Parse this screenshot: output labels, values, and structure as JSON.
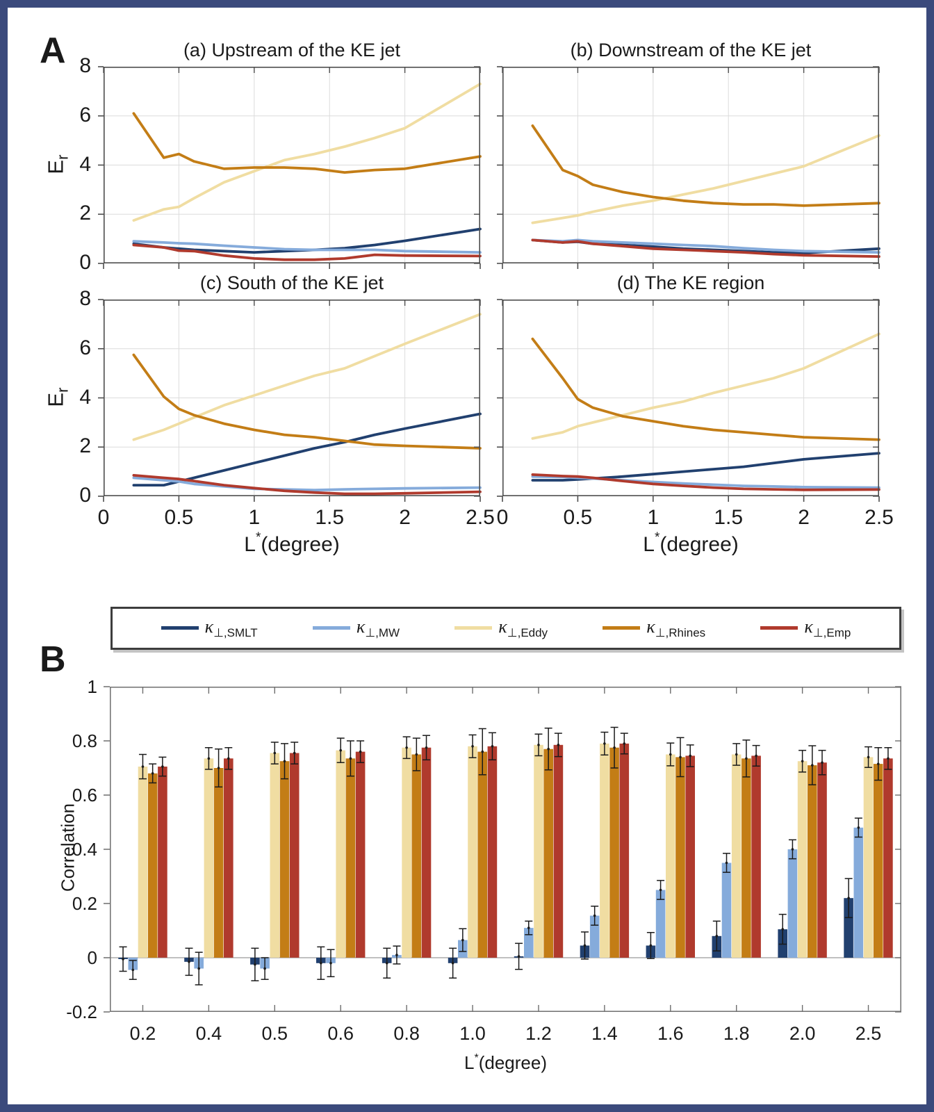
{
  "figure": {
    "panel_a": "A",
    "panel_b": "B"
  },
  "colors": {
    "frame": "#3b4a7c",
    "smlt": "#21406f",
    "mw": "#85abdb",
    "eddy": "#f0dda2",
    "rhines": "#c37d16",
    "emp": "#b03a2d",
    "grid": "#dcdcdc",
    "box_a": "#4d4d4d",
    "box_b": "#6e6e6e",
    "zero_line": "#ababab",
    "error_bar": "#1a1a1a"
  },
  "legend_entries": [
    {
      "key": "smlt",
      "symbol": "κ",
      "subscript": "⊥,SMLT"
    },
    {
      "key": "mw",
      "symbol": "κ",
      "subscript": "⊥,MW"
    },
    {
      "key": "eddy",
      "symbol": "κ",
      "subscript": "⊥,Eddy"
    },
    {
      "key": "rhines",
      "symbol": "κ",
      "subscript": "⊥,Rhines"
    },
    {
      "key": "emp",
      "symbol": "κ",
      "subscript": "⊥,Emp"
    }
  ],
  "er_label": {
    "base": "E",
    "sub": "r"
  },
  "x_axis_label": {
    "base": "L",
    "sup": "*",
    "rest": "(degree)"
  },
  "correlation_label": "Correlation",
  "chart_data": [
    {
      "type": "line",
      "id": "a",
      "title": "(a) Upstream of the KE jet",
      "xlabel": "L*(degree)",
      "ylabel": "Er",
      "xlim": [
        0,
        2.5
      ],
      "ylim": [
        0,
        8
      ],
      "grid": true,
      "legend_position": "shared-bottom-box",
      "xticks": [
        {
          "v": 0,
          "label": "0"
        },
        {
          "v": 0.5,
          "label": "0.5"
        },
        {
          "v": 1,
          "label": "1"
        },
        {
          "v": 1.5,
          "label": "1.5"
        },
        {
          "v": 2,
          "label": "2"
        },
        {
          "v": 2.5,
          "label": "2.5"
        }
      ],
      "yticks": [
        {
          "v": 0,
          "label": "0"
        },
        {
          "v": 2,
          "label": "2"
        },
        {
          "v": 4,
          "label": "4"
        },
        {
          "v": 6,
          "label": "6"
        },
        {
          "v": 8,
          "label": "8"
        }
      ],
      "x": [
        0.2,
        0.4,
        0.5,
        0.6,
        0.8,
        1.0,
        1.2,
        1.4,
        1.6,
        1.8,
        2.0,
        2.5
      ],
      "series": [
        {
          "key": "smlt",
          "name": "κ⊥,SMLT",
          "values": [
            0.8,
            0.65,
            0.6,
            0.55,
            0.5,
            0.45,
            0.5,
            0.55,
            0.62,
            0.75,
            0.92,
            1.4
          ]
        },
        {
          "key": "mw",
          "name": "κ⊥,MW",
          "values": [
            0.9,
            0.85,
            0.82,
            0.8,
            0.72,
            0.65,
            0.58,
            0.55,
            0.55,
            0.55,
            0.5,
            0.45
          ]
        },
        {
          "key": "eddy",
          "name": "κ⊥,Eddy",
          "values": [
            1.75,
            2.2,
            2.3,
            2.65,
            3.3,
            3.75,
            4.2,
            4.45,
            4.75,
            5.1,
            5.5,
            7.3
          ]
        },
        {
          "key": "rhines",
          "name": "κ⊥,Rhines",
          "values": [
            6.1,
            4.3,
            4.45,
            4.15,
            3.85,
            3.9,
            3.9,
            3.85,
            3.7,
            3.8,
            3.85,
            4.35
          ]
        },
        {
          "key": "emp",
          "name": "κ⊥,Emp",
          "values": [
            0.75,
            0.65,
            0.52,
            0.5,
            0.32,
            0.2,
            0.15,
            0.15,
            0.2,
            0.35,
            0.32,
            0.3
          ]
        }
      ]
    },
    {
      "type": "line",
      "id": "b",
      "title": "(b) Downstream of the KE jet",
      "xlabel": "L*(degree)",
      "ylabel": "Er",
      "xlim": [
        0,
        2.5
      ],
      "ylim": [
        0,
        8
      ],
      "grid": true,
      "xticks": [
        {
          "v": 0,
          "label": "0"
        },
        {
          "v": 0.5,
          "label": "0.5"
        },
        {
          "v": 1,
          "label": "1"
        },
        {
          "v": 1.5,
          "label": "1.5"
        },
        {
          "v": 2,
          "label": "2"
        },
        {
          "v": 2.5,
          "label": "2.5"
        }
      ],
      "yticks": [
        {
          "v": 0,
          "label": "0"
        },
        {
          "v": 2,
          "label": "2"
        },
        {
          "v": 4,
          "label": "4"
        },
        {
          "v": 6,
          "label": "6"
        },
        {
          "v": 8,
          "label": "8"
        }
      ],
      "x": [
        0.2,
        0.4,
        0.5,
        0.6,
        0.8,
        1.0,
        1.2,
        1.4,
        1.6,
        1.8,
        2.0,
        2.5
      ],
      "series": [
        {
          "key": "smlt",
          "name": "κ⊥,SMLT",
          "values": [
            0.95,
            0.85,
            0.88,
            0.8,
            0.75,
            0.68,
            0.6,
            0.55,
            0.5,
            0.45,
            0.42,
            0.6
          ]
        },
        {
          "key": "mw",
          "name": "κ⊥,MW",
          "values": [
            0.95,
            0.9,
            0.95,
            0.9,
            0.85,
            0.8,
            0.75,
            0.7,
            0.62,
            0.55,
            0.5,
            0.45
          ]
        },
        {
          "key": "eddy",
          "name": "κ⊥,Eddy",
          "values": [
            1.65,
            1.85,
            1.95,
            2.1,
            2.35,
            2.55,
            2.8,
            3.05,
            3.35,
            3.65,
            3.95,
            5.2
          ]
        },
        {
          "key": "rhines",
          "name": "κ⊥,Rhines",
          "values": [
            5.6,
            3.8,
            3.55,
            3.2,
            2.9,
            2.7,
            2.55,
            2.45,
            2.4,
            2.4,
            2.35,
            2.45
          ]
        },
        {
          "key": "emp",
          "name": "κ⊥,Emp",
          "values": [
            0.95,
            0.85,
            0.9,
            0.8,
            0.7,
            0.6,
            0.55,
            0.5,
            0.45,
            0.38,
            0.33,
            0.28
          ]
        }
      ]
    },
    {
      "type": "line",
      "id": "c",
      "title": "(c) South of the KE jet",
      "xlabel": "L*(degree)",
      "ylabel": "Er",
      "xlim": [
        0,
        2.5
      ],
      "ylim": [
        0,
        8
      ],
      "grid": true,
      "xticks": [
        {
          "v": 0,
          "label": "0"
        },
        {
          "v": 0.5,
          "label": "0.5"
        },
        {
          "v": 1,
          "label": "1"
        },
        {
          "v": 1.5,
          "label": "1.5"
        },
        {
          "v": 2,
          "label": "2"
        },
        {
          "v": 2.5,
          "label": "2.5"
        }
      ],
      "yticks": [
        {
          "v": 0,
          "label": "0"
        },
        {
          "v": 2,
          "label": "2"
        },
        {
          "v": 4,
          "label": "4"
        },
        {
          "v": 6,
          "label": "6"
        },
        {
          "v": 8,
          "label": "8"
        }
      ],
      "x": [
        0.2,
        0.4,
        0.5,
        0.6,
        0.8,
        1.0,
        1.2,
        1.4,
        1.6,
        1.8,
        2.0,
        2.5
      ],
      "series": [
        {
          "key": "smlt",
          "name": "κ⊥,SMLT",
          "values": [
            0.45,
            0.45,
            0.6,
            0.75,
            1.05,
            1.35,
            1.65,
            1.95,
            2.2,
            2.5,
            2.75,
            3.35
          ]
        },
        {
          "key": "mw",
          "name": "κ⊥,MW",
          "values": [
            0.75,
            0.65,
            0.6,
            0.5,
            0.4,
            0.3,
            0.28,
            0.25,
            0.28,
            0.3,
            0.32,
            0.35
          ]
        },
        {
          "key": "eddy",
          "name": "κ⊥,Eddy",
          "values": [
            2.3,
            2.7,
            2.95,
            3.2,
            3.7,
            4.1,
            4.5,
            4.9,
            5.2,
            5.7,
            6.2,
            7.4
          ]
        },
        {
          "key": "rhines",
          "name": "κ⊥,Rhines",
          "values": [
            5.75,
            4.05,
            3.55,
            3.3,
            2.95,
            2.7,
            2.5,
            2.4,
            2.25,
            2.1,
            2.05,
            1.95
          ]
        },
        {
          "key": "emp",
          "name": "κ⊥,Emp",
          "values": [
            0.85,
            0.75,
            0.7,
            0.62,
            0.45,
            0.33,
            0.22,
            0.15,
            0.1,
            0.1,
            0.12,
            0.18
          ]
        }
      ]
    },
    {
      "type": "line",
      "id": "d",
      "title": "(d) The KE region",
      "xlabel": "L*(degree)",
      "ylabel": "Er",
      "xlim": [
        0,
        2.5
      ],
      "ylim": [
        0,
        8
      ],
      "grid": true,
      "xticks": [
        {
          "v": 0,
          "label": "0"
        },
        {
          "v": 0.5,
          "label": "0.5"
        },
        {
          "v": 1,
          "label": "1"
        },
        {
          "v": 1.5,
          "label": "1.5"
        },
        {
          "v": 2,
          "label": "2"
        },
        {
          "v": 2.5,
          "label": "2.5"
        }
      ],
      "yticks": [
        {
          "v": 0,
          "label": "0"
        },
        {
          "v": 2,
          "label": "2"
        },
        {
          "v": 4,
          "label": "4"
        },
        {
          "v": 6,
          "label": "6"
        },
        {
          "v": 8,
          "label": "8"
        }
      ],
      "x": [
        0.2,
        0.4,
        0.5,
        0.6,
        0.8,
        1.0,
        1.2,
        1.4,
        1.6,
        1.8,
        2.0,
        2.5
      ],
      "series": [
        {
          "key": "smlt",
          "name": "κ⊥,SMLT",
          "values": [
            0.65,
            0.65,
            0.68,
            0.72,
            0.8,
            0.9,
            1.0,
            1.1,
            1.2,
            1.35,
            1.5,
            1.75
          ]
        },
        {
          "key": "mw",
          "name": "κ⊥,MW",
          "values": [
            0.8,
            0.78,
            0.75,
            0.72,
            0.65,
            0.58,
            0.52,
            0.47,
            0.42,
            0.4,
            0.37,
            0.35
          ]
        },
        {
          "key": "eddy",
          "name": "κ⊥,Eddy",
          "values": [
            2.35,
            2.6,
            2.85,
            3.0,
            3.3,
            3.6,
            3.85,
            4.2,
            4.5,
            4.8,
            5.2,
            6.6
          ]
        },
        {
          "key": "rhines",
          "name": "κ⊥,Rhines",
          "values": [
            6.4,
            4.8,
            3.95,
            3.6,
            3.25,
            3.05,
            2.85,
            2.7,
            2.6,
            2.5,
            2.4,
            2.3
          ]
        },
        {
          "key": "emp",
          "name": "κ⊥,Emp",
          "values": [
            0.88,
            0.82,
            0.8,
            0.75,
            0.62,
            0.5,
            0.42,
            0.35,
            0.3,
            0.28,
            0.26,
            0.27
          ]
        }
      ]
    },
    {
      "type": "bar",
      "id": "correlation",
      "title": "",
      "xlabel": "L*(degree)",
      "ylabel": "Correlation",
      "ylim": [
        -0.2,
        1
      ],
      "grid": false,
      "legend_position": "inside-top",
      "yticks": [
        {
          "v": -0.2,
          "label": "-0.2"
        },
        {
          "v": 0,
          "label": "0"
        },
        {
          "v": 0.2,
          "label": "0.2"
        },
        {
          "v": 0.4,
          "label": "0.4"
        },
        {
          "v": 0.6,
          "label": "0.6"
        },
        {
          "v": 0.8,
          "label": "0.8"
        },
        {
          "v": 1,
          "label": "1"
        }
      ],
      "categories": [
        "0.2",
        "0.4",
        "0.5",
        "0.6",
        "0.8",
        "1.0",
        "1.2",
        "1.4",
        "1.6",
        "1.8",
        "2.0",
        "2.5"
      ],
      "series": [
        {
          "key": "smlt",
          "name": "κ⊥,SMLT",
          "values": [
            -0.005,
            -0.015,
            -0.025,
            -0.02,
            -0.02,
            -0.02,
            0.005,
            0.045,
            0.045,
            0.08,
            0.105,
            0.22
          ],
          "errors": [
            0.045,
            0.05,
            0.06,
            0.06,
            0.055,
            0.055,
            0.048,
            0.05,
            0.048,
            0.055,
            0.055,
            0.072
          ]
        },
        {
          "key": "mw",
          "name": "κ⊥,MW",
          "values": [
            -0.045,
            -0.04,
            -0.04,
            -0.02,
            0.01,
            0.065,
            0.11,
            0.155,
            0.25,
            0.35,
            0.4,
            0.48
          ],
          "errors": [
            0.035,
            0.06,
            0.04,
            0.05,
            0.033,
            0.042,
            0.025,
            0.035,
            0.035,
            0.035,
            0.035,
            0.035
          ]
        },
        {
          "key": "eddy",
          "name": "κ⊥,Eddy",
          "values": [
            0.705,
            0.735,
            0.755,
            0.765,
            0.775,
            0.78,
            0.785,
            0.79,
            0.75,
            0.75,
            0.725,
            0.74
          ],
          "errors": [
            0.045,
            0.04,
            0.04,
            0.045,
            0.04,
            0.042,
            0.04,
            0.042,
            0.042,
            0.04,
            0.04,
            0.038
          ]
        },
        {
          "key": "rhines",
          "name": "κ⊥,Rhines",
          "values": [
            0.68,
            0.7,
            0.725,
            0.735,
            0.75,
            0.76,
            0.77,
            0.775,
            0.74,
            0.735,
            0.71,
            0.715
          ],
          "errors": [
            0.035,
            0.07,
            0.065,
            0.065,
            0.06,
            0.085,
            0.077,
            0.075,
            0.072,
            0.068,
            0.072,
            0.06
          ]
        },
        {
          "key": "emp",
          "name": "κ⊥,Emp",
          "values": [
            0.705,
            0.735,
            0.755,
            0.76,
            0.775,
            0.78,
            0.785,
            0.79,
            0.745,
            0.745,
            0.72,
            0.735
          ],
          "errors": [
            0.035,
            0.04,
            0.04,
            0.04,
            0.045,
            0.05,
            0.043,
            0.038,
            0.04,
            0.038,
            0.045,
            0.04
          ]
        }
      ]
    }
  ]
}
